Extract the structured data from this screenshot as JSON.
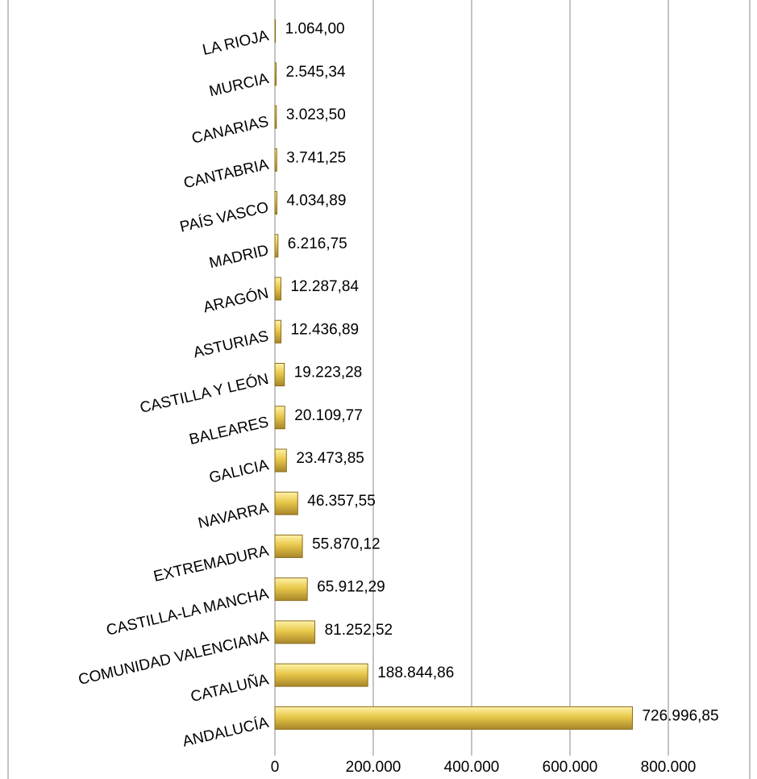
{
  "chart_data": {
    "type": "barh",
    "categories": [
      "LA RIOJA",
      "MURCIA",
      "CANARIAS",
      "CANTABRIA",
      "PAÍS VASCO",
      "MADRID",
      "ARAGÓN",
      "ASTURIAS",
      "CASTILLA Y LEÓN",
      "BALEARES",
      "GALICIA",
      "NAVARRA",
      "EXTREMADURA",
      "CASTILLA-LA MANCHA",
      "COMUNIDAD VALENCIANA",
      "CATALUÑA",
      "ANDALUCÍA"
    ],
    "values": [
      1064.0,
      2545.34,
      3023.5,
      3741.25,
      4034.89,
      6216.75,
      12287.84,
      12436.89,
      19223.28,
      20109.77,
      23473.85,
      46357.55,
      55870.12,
      65912.29,
      81252.52,
      188844.86,
      726996.85
    ],
    "value_labels": [
      "1.064,00",
      "2.545,34",
      "3.023,50",
      "3.741,25",
      "4.034,89",
      "6.216,75",
      "12.287,84",
      "12.436,89",
      "19.223,28",
      "20.109,77",
      "23.473,85",
      "46.357,55",
      "55.870,12",
      "65.912,29",
      "81.252,52",
      "188.844,86",
      "726.996,85"
    ],
    "color": "#e8c84a",
    "xlim": [
      0,
      800000
    ],
    "xticks": [
      0,
      {
        "value": 200000,
        "label": "200.000"
      },
      {
        "value": 400000,
        "label": "400.000"
      },
      {
        "value": 600000,
        "label": "600.000"
      },
      {
        "value": 800000,
        "label": "800.000"
      }
    ],
    "grid": true
  }
}
